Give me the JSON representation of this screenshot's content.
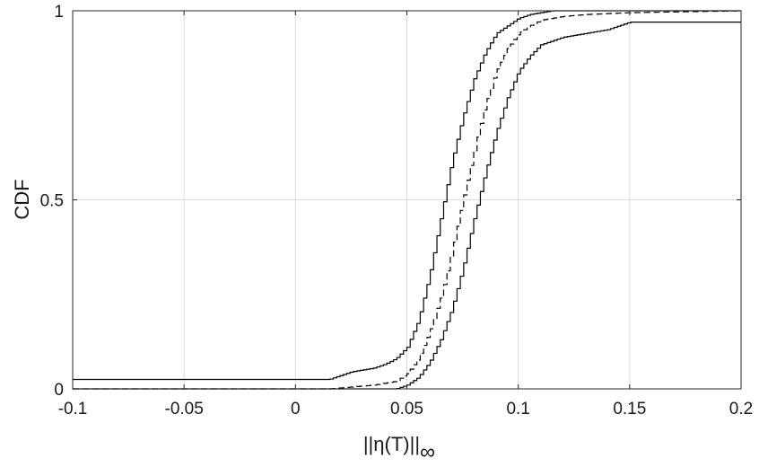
{
  "chart_data": {
    "type": "line",
    "title": "",
    "xlabel": "||η(T)||",
    "xlabel_subscript": "∞",
    "ylabel": "CDF",
    "xlim": [
      -0.1,
      0.2
    ],
    "ylim": [
      0,
      1
    ],
    "x_ticks": [
      "-0.1",
      "-0.05",
      "0",
      "0.05",
      "0.1",
      "0.15",
      "0.2"
    ],
    "y_ticks": [
      "0",
      "0.5",
      "1"
    ],
    "grid": true,
    "legend": "none",
    "colors": {
      "line": "#000000",
      "grid": "#dcdcdc",
      "axis": "#262626"
    },
    "series": [
      {
        "style": "solid",
        "x": [
          -0.1,
          0.015,
          0.02,
          0.025,
          0.03,
          0.035,
          0.04,
          0.045,
          0.05,
          0.055,
          0.06,
          0.065,
          0.07,
          0.075,
          0.08,
          0.085,
          0.09,
          0.095,
          0.1,
          0.105,
          0.11,
          0.115,
          0.12,
          0.2
        ],
        "y": [
          0.025,
          0.025,
          0.035,
          0.045,
          0.05,
          0.055,
          0.065,
          0.08,
          0.11,
          0.18,
          0.3,
          0.45,
          0.6,
          0.72,
          0.82,
          0.89,
          0.94,
          0.96,
          0.98,
          0.99,
          0.995,
          1.0,
          1.0,
          1.0
        ]
      },
      {
        "style": "dashed",
        "x": [
          -0.1,
          0.015,
          0.025,
          0.035,
          0.045,
          0.05,
          0.055,
          0.06,
          0.065,
          0.07,
          0.075,
          0.08,
          0.085,
          0.09,
          0.095,
          0.1,
          0.105,
          0.11,
          0.12,
          0.13,
          0.15,
          0.2
        ],
        "y": [
          0.0,
          0.0,
          0.005,
          0.01,
          0.02,
          0.04,
          0.08,
          0.15,
          0.24,
          0.36,
          0.5,
          0.63,
          0.75,
          0.84,
          0.9,
          0.94,
          0.96,
          0.975,
          0.985,
          0.99,
          0.995,
          1.0
        ]
      },
      {
        "style": "solid",
        "x": [
          -0.1,
          0.015,
          0.03,
          0.04,
          0.045,
          0.05,
          0.055,
          0.06,
          0.065,
          0.07,
          0.075,
          0.08,
          0.085,
          0.09,
          0.095,
          0.1,
          0.105,
          0.11,
          0.12,
          0.13,
          0.14,
          0.15,
          0.2
        ],
        "y": [
          0.0,
          0.0,
          0.0,
          0.0,
          0.0,
          0.01,
          0.03,
          0.07,
          0.13,
          0.21,
          0.32,
          0.45,
          0.57,
          0.68,
          0.77,
          0.84,
          0.88,
          0.91,
          0.93,
          0.94,
          0.95,
          0.97,
          0.97
        ]
      }
    ]
  }
}
